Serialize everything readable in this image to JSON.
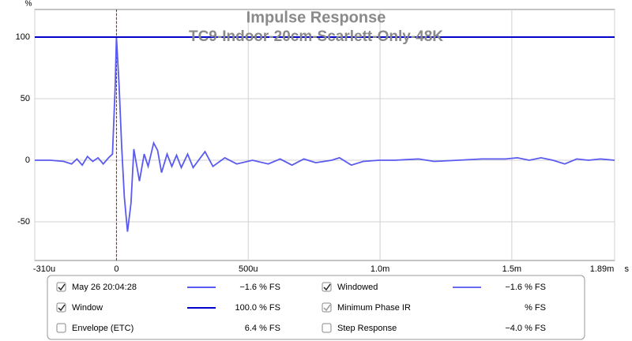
{
  "chart_data": {
    "type": "line",
    "title": "Impulse Response",
    "subtitle": "TC9-Indoor-20cm-Scarlett-Only-48K",
    "y_label": "%",
    "x_label": "s",
    "xlim": [
      -310,
      1890
    ],
    "ylim": [
      -81.4,
      122.4
    ],
    "xticks": [
      {
        "value": -310,
        "label": "-310u"
      },
      0,
      {
        "value": 500,
        "label": "500u"
      },
      {
        "value": 1000,
        "label": "1.0m"
      },
      {
        "value": 1500,
        "label": "1.5m"
      },
      {
        "value": 1890,
        "label": "1.89m"
      }
    ],
    "yticks": [
      -50,
      0,
      50,
      100
    ],
    "grid": true,
    "cursor_x": 0,
    "series": [
      {
        "name": "May 26 20:04:28",
        "color": "#5a5af0",
        "checked": true,
        "readout": "−1.6 % FS",
        "x": [
          -310,
          -250,
          -200,
          -170,
          -150,
          -130,
          -110,
          -90,
          -70,
          -50,
          -30,
          -15,
          -5,
          0,
          10,
          20,
          30,
          42,
          55,
          66,
          87,
          105,
          120,
          141,
          156,
          171,
          192,
          210,
          228,
          246,
          270,
          291,
          336,
          366,
          411,
          456,
          516,
          576,
          621,
          666,
          711,
          756,
          816,
          846,
          891,
          936,
          996,
          1056,
          1146,
          1206,
          1296,
          1386,
          1476,
          1521,
          1566,
          1611,
          1656,
          1701,
          1746,
          1791,
          1836,
          1890
        ],
        "values": [
          0,
          0,
          -1,
          -3,
          1,
          -4,
          3,
          -1,
          2,
          -3,
          2,
          5,
          60,
          100,
          60,
          10,
          -30,
          -58,
          -35,
          9,
          -17,
          5,
          -5,
          14,
          8,
          -10,
          5,
          -5,
          4,
          -6,
          5,
          -6,
          7,
          -5,
          2,
          -3,
          0,
          -3,
          1,
          -4,
          1,
          -2,
          0,
          2,
          -4,
          -1,
          0,
          0,
          1,
          -1,
          0,
          1,
          1,
          2,
          0,
          2,
          0,
          -3,
          1,
          0,
          1,
          0
        ]
      },
      {
        "name": "Window",
        "color": "#0000c8",
        "checked": true,
        "readout": "100.0 % FS",
        "x": [
          -310,
          1890
        ],
        "values": [
          100,
          100
        ]
      }
    ],
    "other_traces": [
      {
        "name": "Envelope (ETC)",
        "checked": false,
        "readout": "6.4 % FS"
      },
      {
        "name": "Windowed",
        "color": "#6a6af0",
        "checked": true,
        "readout": "−1.6 % FS"
      },
      {
        "name": "Minimum Phase IR",
        "checked": true,
        "disabled": true,
        "readout": "% FS"
      },
      {
        "name": "Step Response",
        "checked": false,
        "readout": "−4.0 % FS"
      }
    ]
  }
}
